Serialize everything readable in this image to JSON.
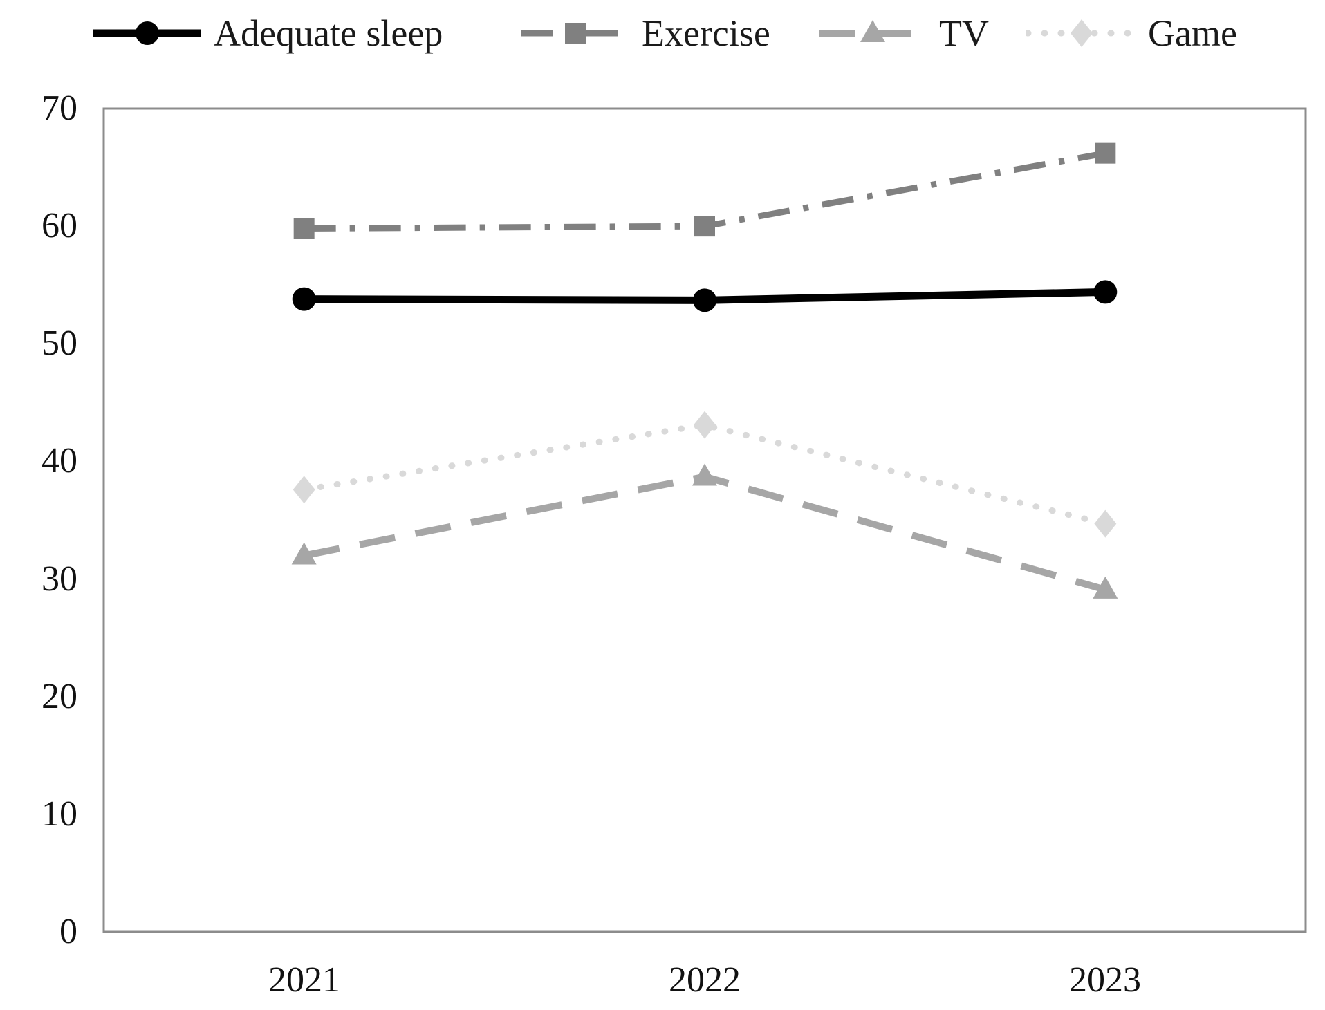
{
  "chart_data": {
    "type": "line",
    "title": "",
    "xlabel": "",
    "ylabel": "",
    "categories": [
      "2021",
      "2022",
      "2023"
    ],
    "yticks": [
      "0",
      "10",
      "20",
      "30",
      "40",
      "50",
      "60",
      "70"
    ],
    "ylim": [
      0,
      70
    ],
    "grid": false,
    "legend_position": "top",
    "plot_border_color": "#8c8c8c",
    "series": [
      {
        "name": "Adequate sleep",
        "values": [
          53.8,
          53.7,
          54.4
        ],
        "color": "#000000",
        "marker": "circle",
        "line_style": "solid"
      },
      {
        "name": "Exercise",
        "values": [
          59.8,
          60.0,
          66.2
        ],
        "color": "#808080",
        "marker": "square",
        "line_style": "dash-dot"
      },
      {
        "name": "TV",
        "values": [
          32.0,
          38.7,
          29.1
        ],
        "color": "#a6a6a6",
        "marker": "triangle",
        "line_style": "dashed"
      },
      {
        "name": "Game",
        "values": [
          37.6,
          43.1,
          34.7
        ],
        "color": "#d9d9d9",
        "marker": "diamond",
        "line_style": "dotted"
      }
    ]
  }
}
